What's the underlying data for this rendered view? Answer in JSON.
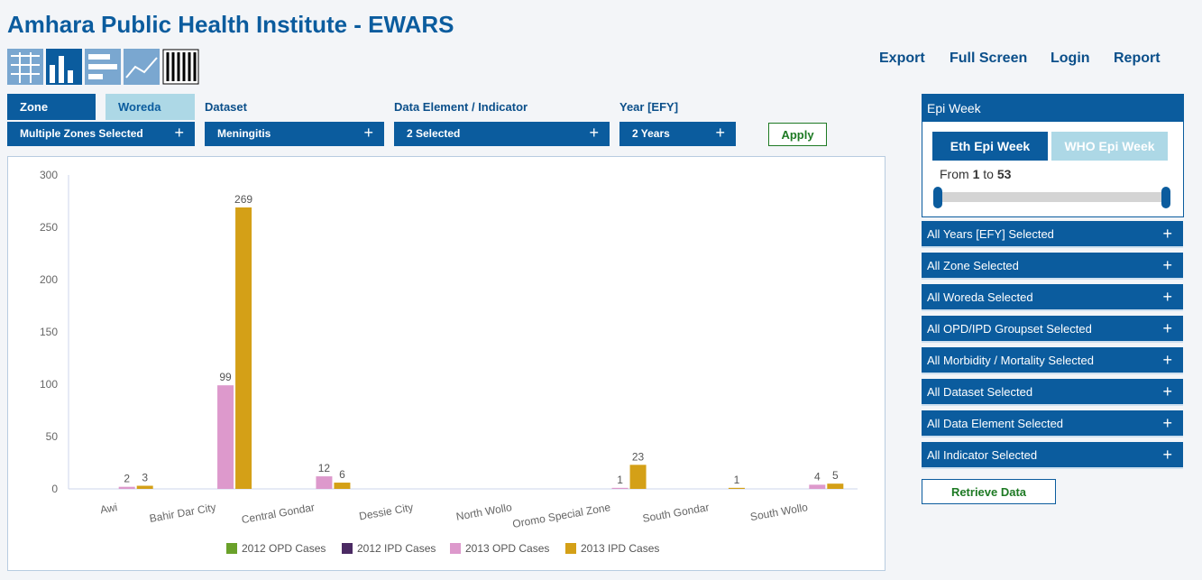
{
  "header": {
    "title": "Amhara Public Health Institute - EWARS",
    "actions": [
      "Export",
      "Full Screen",
      "Login",
      "Report"
    ]
  },
  "filters": {
    "tabs": [
      "Zone",
      "Woreda"
    ],
    "labels": [
      "Dataset",
      "Data Element / Indicator",
      "Year [EFY]"
    ],
    "selects": [
      "Multiple Zones Selected",
      "Meningitis",
      "2 Selected",
      "2 Years"
    ],
    "apply": "Apply"
  },
  "sidebar": {
    "epi_week": {
      "title": "Epi Week",
      "tabs": [
        "Eth Epi Week",
        "WHO Epi Week"
      ],
      "from_label": "From",
      "from": 1,
      "to_label": "to",
      "to": 53
    },
    "accordions": [
      "All Years [EFY] Selected",
      "All Zone Selected",
      "All Woreda Selected",
      "All OPD/IPD Groupset Selected",
      "All Morbidity / Mortality Selected",
      "All Dataset Selected",
      "All Data Element Selected",
      "All Indicator Selected"
    ],
    "retrieve": "Retrieve Data"
  },
  "chart_data": {
    "type": "bar",
    "categories": [
      "Awi",
      "Bahir Dar City",
      "Central Gondar",
      "Dessie City",
      "North Wollo",
      "Oromo Special Zone",
      "South Gondar",
      "South Wollo"
    ],
    "series": [
      {
        "name": "2012 OPD Cases",
        "color": "#6aa12a",
        "values": [
          null,
          null,
          null,
          null,
          null,
          null,
          null,
          null
        ]
      },
      {
        "name": "2012 IPD Cases",
        "color": "#4b2a63",
        "values": [
          null,
          null,
          null,
          null,
          null,
          null,
          null,
          null
        ]
      },
      {
        "name": "2013 OPD Cases",
        "color": "#dd99cc",
        "values": [
          2,
          99,
          12,
          null,
          null,
          1,
          null,
          4
        ]
      },
      {
        "name": "2013 IPD Cases",
        "color": "#d4a017",
        "values": [
          3,
          269,
          6,
          null,
          null,
          23,
          1,
          5
        ]
      }
    ],
    "ylim": [
      0,
      300
    ],
    "yticks": [
      0,
      50,
      100,
      150,
      200,
      250,
      300
    ],
    "grid": false,
    "legend": "bottom"
  }
}
